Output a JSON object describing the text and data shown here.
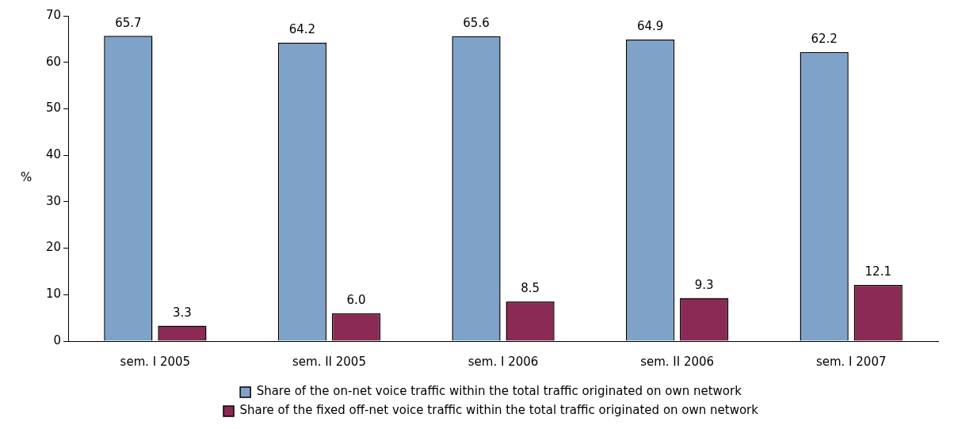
{
  "chart_data": {
    "type": "bar",
    "ylabel": "%",
    "categories": [
      "sem. I 2005",
      "sem. II 2005",
      "sem. I 2006",
      "sem. II 2006",
      "sem. I 2007"
    ],
    "series": [
      {
        "name": "Share of the on-net voice traffic within the total traffic originated on own network",
        "color": "#7fa3c8",
        "values": [
          65.7,
          64.2,
          65.6,
          64.9,
          62.2
        ],
        "value_labels": [
          "65.7",
          "64.2",
          "65.6",
          "64.9",
          "62.2"
        ]
      },
      {
        "name": "Share of the fixed off-net voice traffic within the total traffic originated on own network",
        "color": "#8b2a55",
        "values": [
          3.3,
          6.0,
          8.5,
          9.3,
          12.1
        ],
        "value_labels": [
          "3.3",
          "6.0",
          "8.5",
          "9.3",
          "12.1"
        ]
      }
    ],
    "ylim": [
      0,
      70
    ],
    "yticks": [
      0,
      10,
      20,
      30,
      40,
      50,
      60,
      70
    ],
    "grid": false,
    "legend": "bottom"
  }
}
